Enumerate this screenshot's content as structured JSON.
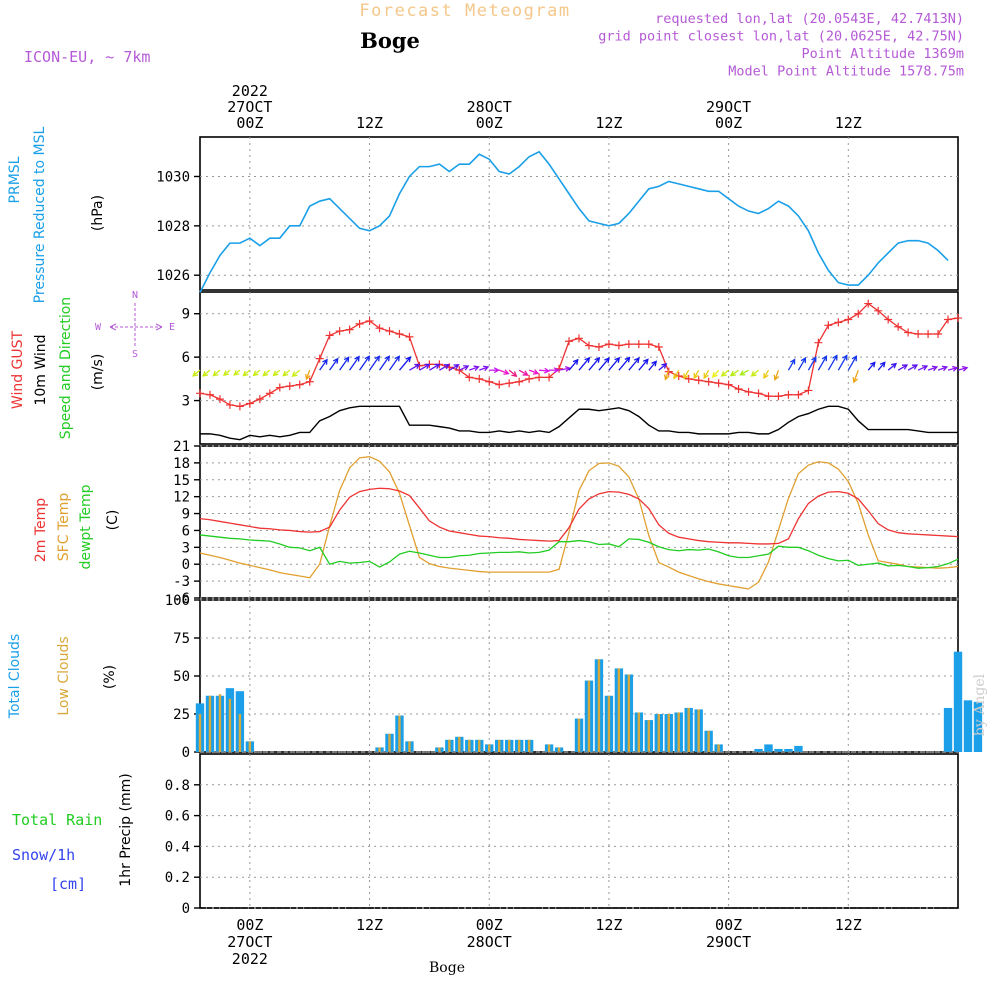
{
  "header": {
    "forecast_title": "Forecast Meteogram",
    "station": "Boge",
    "model": "ICON-EU, ~ 7km",
    "requested": "requested lon,lat (20.0543E, 42.7413N)",
    "grid_point": "grid point closest lon,lat (20.0625E, 42.75N)",
    "point_altitude": "Point Altitude 1369m",
    "model_altitude": "Model Point Altitude 1578.75m"
  },
  "time_axis": {
    "top_labels": [
      {
        "t": 0,
        "lines": [
          "2022",
          "27OCT",
          "00Z"
        ]
      },
      {
        "t": 12,
        "lines": [
          "12Z"
        ]
      },
      {
        "t": 24,
        "lines": [
          "28OCT",
          "00Z"
        ]
      },
      {
        "t": 36,
        "lines": [
          "12Z"
        ]
      },
      {
        "t": 48,
        "lines": [
          "29OCT",
          "00Z"
        ]
      },
      {
        "t": 60,
        "lines": [
          "12Z"
        ]
      }
    ],
    "bottom_labels": [
      {
        "t": 0,
        "lines": [
          "00Z",
          "27OCT",
          "2022"
        ]
      },
      {
        "t": 12,
        "lines": [
          "12Z"
        ]
      },
      {
        "t": 24,
        "lines": [
          "00Z",
          "28OCT"
        ]
      },
      {
        "t": 36,
        "lines": [
          "12Z"
        ]
      },
      {
        "t": 48,
        "lines": [
          "00Z",
          "29OCT"
        ]
      },
      {
        "t": 60,
        "lines": [
          "12Z"
        ]
      }
    ],
    "footer_label": "Boge",
    "hours_range": [
      -5,
      71
    ]
  },
  "panels": {
    "pressure": {
      "label_lines": [
        "PRMSL",
        "Pressure Reduced to MSL"
      ],
      "unit": "(hPa)",
      "ticks": [
        "1026",
        "1028",
        "1030"
      ]
    },
    "wind": {
      "label_gust": "Wind GUST",
      "label_wind": "10m Wind",
      "label_dir": "Speed and Direction",
      "unit": "(m/s)",
      "compass": {
        "n": "N",
        "s": "S",
        "w": "W",
        "e": "E"
      },
      "ticks": [
        "3",
        "6",
        "9"
      ]
    },
    "temperature": {
      "label_2m": "2m Temp",
      "label_sfc": "SFC Temp",
      "label_dew": "dewpt Temp",
      "unit": "(C)",
      "ticks": [
        "-6",
        "-3",
        "0",
        "3",
        "6",
        "9",
        "12",
        "15",
        "18",
        "21"
      ]
    },
    "clouds": {
      "label_total": "Total Clouds",
      "label_low": "Low Clouds",
      "unit": "(%)",
      "ticks": [
        "0",
        "25",
        "50",
        "75",
        "100"
      ]
    },
    "precip": {
      "label_rain": "Total  Rain",
      "label_snow": "Snow/1h",
      "label_cm": "[cm]",
      "unit": "1hr Precip (mm)",
      "ticks": [
        "0",
        "0.2",
        "0.4",
        "0.6",
        "0.8"
      ]
    }
  },
  "watermark": "by Angel",
  "colors": {
    "pressure": "#1a9fe8",
    "gust": "#ee3333",
    "wind": "#000000",
    "temp2m": "#ee3333",
    "sfc": "#e0a030",
    "dew": "#22cc22",
    "total_clouds": "#1a9fe8",
    "low_clouds": "#d9a83a",
    "rain": "#22cc22",
    "snow": "#3344ee",
    "title_orange": "#f4c78a",
    "purple": "#b55ad6"
  },
  "chart_data": {
    "type": "line",
    "x_unit": "hours from 27OCT 00Z",
    "pressure": {
      "name": "PRMSL",
      "ylim": [
        1025.4,
        1031.6
      ],
      "x": [
        -5,
        -4,
        -3,
        -2,
        -1,
        0,
        1,
        2,
        3,
        4,
        5,
        6,
        7,
        8,
        9,
        10,
        11,
        12,
        13,
        14,
        15,
        16,
        17,
        18,
        19,
        20,
        21,
        22,
        23,
        24,
        25,
        26,
        27,
        28,
        29,
        30,
        31,
        32,
        33,
        34,
        35,
        36,
        37,
        38,
        39,
        40,
        41,
        42,
        43,
        44,
        45,
        46,
        47,
        48,
        49,
        50,
        51,
        52,
        53,
        54,
        55,
        56,
        57,
        58,
        59,
        60,
        61,
        62,
        63,
        64,
        65,
        66,
        67,
        68,
        69,
        70
      ],
      "y": [
        1025.3,
        1026.1,
        1026.8,
        1027.3,
        1027.3,
        1027.5,
        1027.2,
        1027.5,
        1027.5,
        1028.0,
        1028.0,
        1028.8,
        1029.0,
        1029.1,
        1028.7,
        1028.3,
        1027.9,
        1027.8,
        1028.0,
        1028.4,
        1029.3,
        1030.0,
        1030.4,
        1030.4,
        1030.5,
        1030.2,
        1030.5,
        1030.5,
        1030.9,
        1030.7,
        1030.2,
        1030.1,
        1030.4,
        1030.8,
        1031.0,
        1030.5,
        1029.9,
        1029.3,
        1028.7,
        1028.2,
        1028.1,
        1028.0,
        1028.1,
        1028.5,
        1029.0,
        1029.5,
        1029.6,
        1029.8,
        1029.7,
        1029.6,
        1029.5,
        1029.4,
        1029.4,
        1029.1,
        1028.8,
        1028.6,
        1028.5,
        1028.7,
        1029.0,
        1028.8,
        1028.4,
        1027.8,
        1026.9,
        1026.2,
        1025.7,
        1025.6,
        1025.6,
        1026.0,
        1026.5,
        1026.9,
        1027.3,
        1027.4,
        1027.4,
        1027.3,
        1027.0,
        1026.6
      ]
    },
    "wind": {
      "ylim": [
        0,
        10.5
      ],
      "gust": {
        "name": "Wind GUST",
        "y": [
          3.5,
          3.4,
          3.1,
          2.7,
          2.6,
          2.8,
          3.1,
          3.5,
          3.9,
          4.0,
          4.1,
          4.3,
          5.9,
          7.5,
          7.8,
          7.9,
          8.3,
          8.5,
          8.0,
          7.8,
          7.6,
          7.4,
          5.4,
          5.5,
          5.5,
          5.3,
          5.1,
          4.6,
          4.5,
          4.3,
          4.1,
          4.2,
          4.3,
          4.5,
          4.6,
          4.6,
          5.2,
          7.1,
          7.3,
          6.8,
          6.7,
          6.9,
          6.8,
          6.9,
          6.9,
          6.9,
          6.7,
          5.0,
          4.7,
          4.5,
          4.4,
          4.3,
          4.2,
          4.1,
          3.8,
          3.6,
          3.5,
          3.3,
          3.3,
          3.4,
          3.4,
          3.7,
          7.0,
          8.2,
          8.4,
          8.6,
          9.0,
          9.7,
          9.2,
          8.6,
          8.1,
          7.7,
          7.6,
          7.6,
          7.6,
          8.6,
          8.7
        ]
      },
      "speed": {
        "name": "10m Wind",
        "y": [
          0.7,
          0.7,
          0.6,
          0.4,
          0.3,
          0.6,
          0.5,
          0.6,
          0.5,
          0.6,
          0.8,
          0.8,
          1.6,
          1.9,
          2.3,
          2.5,
          2.6,
          2.6,
          2.6,
          2.6,
          2.6,
          1.3,
          1.3,
          1.3,
          1.2,
          1.1,
          0.9,
          0.9,
          0.8,
          0.8,
          0.9,
          0.8,
          0.9,
          0.8,
          0.9,
          0.8,
          1.2,
          1.8,
          2.4,
          2.4,
          2.3,
          2.4,
          2.5,
          2.3,
          1.9,
          1.3,
          0.9,
          0.9,
          0.8,
          0.8,
          0.7,
          0.7,
          0.7,
          0.7,
          0.8,
          0.8,
          0.7,
          0.7,
          1.0,
          1.5,
          1.9,
          2.1,
          2.4,
          2.6,
          2.6,
          2.4,
          1.6,
          1.0,
          1.0,
          1.0,
          1.0,
          1.0,
          0.9,
          0.8,
          0.8,
          0.8,
          0.8
        ]
      },
      "direction_barbs_deg": [
        230,
        230,
        230,
        230,
        230,
        230,
        230,
        230,
        230,
        230,
        230,
        200,
        35,
        35,
        35,
        35,
        35,
        35,
        35,
        35,
        40,
        60,
        60,
        60,
        60,
        60,
        65,
        70,
        70,
        90,
        110,
        130,
        120,
        110,
        95,
        90,
        80,
        40,
        40,
        40,
        40,
        40,
        40,
        40,
        40,
        40,
        50,
        200,
        210,
        210,
        210,
        210,
        220,
        230,
        235,
        240,
        230,
        210,
        200,
        30,
        30,
        30,
        30,
        30,
        30,
        30,
        200,
        40,
        40,
        50,
        60,
        60,
        65,
        70,
        70,
        75,
        75
      ],
      "barb_x_start": -5
    },
    "temperature": {
      "ylim": [
        -6,
        21
      ],
      "t2m": {
        "name": "2m Temp",
        "y": [
          8.1,
          7.9,
          7.6,
          7.3,
          7.0,
          6.7,
          6.4,
          6.3,
          6.1,
          6.0,
          5.8,
          5.7,
          5.8,
          6.6,
          9.6,
          11.9,
          12.9,
          13.3,
          13.5,
          13.4,
          13.0,
          12.2,
          10.0,
          7.7,
          6.6,
          5.9,
          5.6,
          5.3,
          5.0,
          4.9,
          4.7,
          4.6,
          4.4,
          4.3,
          4.2,
          4.1,
          4.2,
          6.5,
          9.8,
          11.6,
          12.5,
          12.9,
          12.8,
          12.4,
          11.6,
          9.9,
          7.0,
          5.5,
          4.8,
          4.5,
          4.2,
          4.0,
          3.9,
          3.8,
          3.8,
          3.7,
          3.6,
          3.6,
          3.7,
          4.5,
          8.1,
          10.8,
          12.1,
          12.8,
          12.9,
          12.6,
          11.6,
          9.5,
          7.2,
          6.1,
          5.6,
          5.4,
          5.3,
          5.2,
          5.1,
          5.0,
          4.9
        ]
      },
      "sfc": {
        "name": "SFC Temp",
        "y": [
          2.0,
          1.6,
          1.2,
          0.7,
          0.2,
          -0.2,
          -0.6,
          -1.0,
          -1.5,
          -1.8,
          -2.1,
          -2.4,
          0.0,
          6.8,
          13.1,
          17.1,
          18.9,
          19.1,
          18.3,
          16.4,
          12.6,
          6.9,
          1.2,
          0.1,
          -0.4,
          -0.7,
          -0.9,
          -1.1,
          -1.3,
          -1.4,
          -1.4,
          -1.4,
          -1.4,
          -1.4,
          -1.4,
          -1.4,
          -0.9,
          5.7,
          13.1,
          16.6,
          17.9,
          18.0,
          17.4,
          15.5,
          11.6,
          5.1,
          0.3,
          -0.5,
          -1.4,
          -2.0,
          -2.6,
          -3.1,
          -3.5,
          -3.8,
          -4.1,
          -4.4,
          -3.2,
          0.4,
          6.1,
          11.7,
          16.1,
          17.6,
          18.2,
          18.0,
          16.9,
          14.7,
          10.8,
          5.2,
          0.6,
          0.3,
          0.0,
          -0.4,
          -0.5,
          -0.6,
          -0.7,
          -0.6,
          -0.4
        ]
      },
      "dewpt": {
        "name": "dewpt Temp",
        "y": [
          5.2,
          5.0,
          4.8,
          4.6,
          4.5,
          4.3,
          4.2,
          4.1,
          3.6,
          3.0,
          2.9,
          2.4,
          3.0,
          0.0,
          0.5,
          0.2,
          0.3,
          0.5,
          -0.5,
          0.4,
          1.8,
          2.3,
          2.0,
          1.6,
          1.2,
          1.2,
          1.5,
          1.6,
          1.9,
          2.0,
          2.1,
          2.1,
          2.2,
          2.0,
          2.1,
          2.5,
          4.0,
          4.0,
          4.2,
          4.0,
          3.5,
          3.6,
          3.1,
          4.5,
          4.4,
          3.9,
          3.1,
          2.6,
          2.4,
          2.6,
          2.5,
          2.7,
          2.2,
          1.5,
          1.2,
          1.2,
          1.5,
          1.8,
          3.2,
          3.0,
          3.0,
          2.4,
          1.6,
          1.0,
          0.6,
          0.7,
          -0.2,
          0.0,
          0.2,
          -0.3,
          -0.2,
          -0.4,
          -0.7,
          -0.6,
          -0.4,
          0.1,
          0.9
        ]
      },
      "x_start": -5
    },
    "clouds": {
      "ylim": [
        0,
        100
      ],
      "x_start": -5,
      "total": {
        "name": "Total Clouds",
        "y": [
          32,
          37,
          37,
          42,
          40,
          7,
          0,
          0,
          0,
          0,
          0,
          0,
          0,
          0,
          0,
          0,
          0,
          0,
          3,
          12,
          24,
          7,
          0,
          0,
          3,
          8,
          10,
          8,
          8,
          5,
          8,
          8,
          8,
          8,
          0,
          5,
          3,
          0,
          22,
          47,
          61,
          37,
          55,
          51,
          26,
          21,
          25,
          25,
          26,
          29,
          28,
          14,
          5,
          0,
          0,
          0,
          2,
          5,
          2,
          2,
          4,
          0,
          0,
          0,
          0,
          0,
          0,
          0,
          0,
          0,
          0,
          0,
          0,
          0,
          0,
          29,
          66,
          34,
          33
        ]
      },
      "low": {
        "name": "Low Clouds",
        "y": [
          25,
          37,
          38,
          35,
          25,
          7,
          0,
          0,
          0,
          0,
          0,
          0,
          0,
          0,
          0,
          0,
          0,
          0,
          3,
          12,
          24,
          7,
          0,
          0,
          3,
          8,
          10,
          8,
          8,
          5,
          8,
          8,
          8,
          8,
          0,
          5,
          3,
          0,
          22,
          47,
          61,
          37,
          55,
          51,
          26,
          21,
          25,
          25,
          26,
          29,
          28,
          14,
          5,
          0,
          0,
          0,
          0,
          0,
          0,
          0,
          0,
          0,
          0,
          0,
          0,
          0,
          0,
          0,
          0,
          0,
          0,
          0,
          0,
          0,
          0,
          0,
          0,
          0,
          0
        ]
      }
    },
    "precip": {
      "ylim": [
        0,
        1.0
      ],
      "rain": {
        "name": "Total Rain",
        "y": []
      },
      "snow": {
        "name": "Snow/1h",
        "y": []
      }
    }
  }
}
